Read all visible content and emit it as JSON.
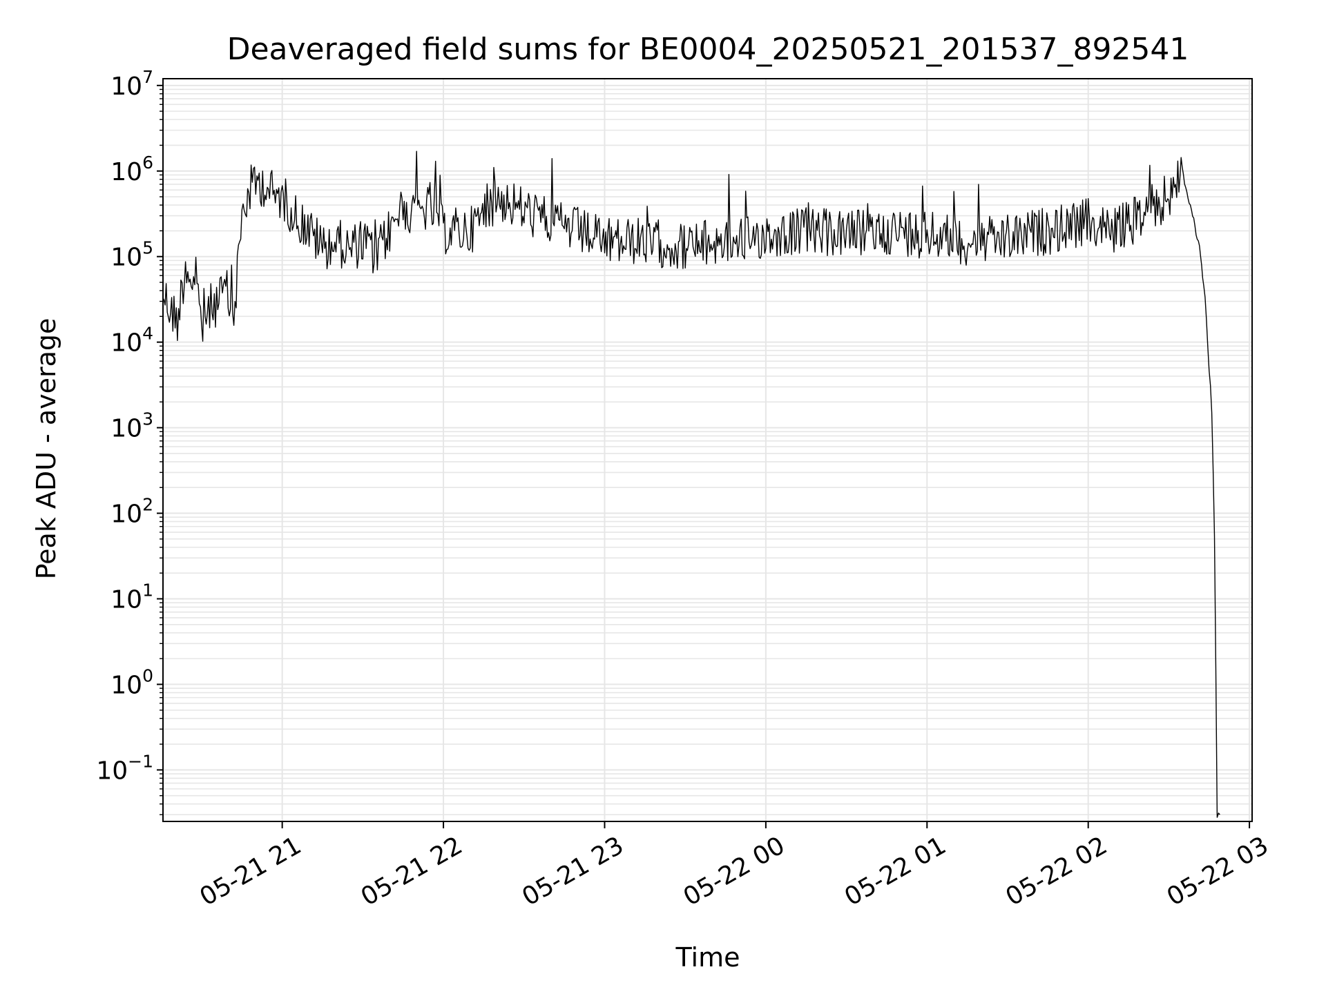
{
  "chart_data": {
    "type": "line",
    "title": "Deaveraged field sums for BE0004_20250521_201537_892541",
    "xlabel": "Time",
    "ylabel": "Peak ADU - average",
    "y_scale": "log",
    "ylim": [
      0.025,
      12000000
    ],
    "xlim": [
      "2025-05-21 20:15:37",
      "2025-05-22 03:01:00"
    ],
    "grid": true,
    "legend": "none",
    "line_color": "#000000",
    "grid_color": "#e6e6e6",
    "x_ticks": [
      {
        "value": "2025-05-21 21:00",
        "label": "05-21 21"
      },
      {
        "value": "2025-05-21 22:00",
        "label": "05-21 22"
      },
      {
        "value": "2025-05-21 23:00",
        "label": "05-21 23"
      },
      {
        "value": "2025-05-22 00:00",
        "label": "05-22 00"
      },
      {
        "value": "2025-05-22 01:00",
        "label": "05-22 01"
      },
      {
        "value": "2025-05-22 02:00",
        "label": "05-22 02"
      },
      {
        "value": "2025-05-22 03:00",
        "label": "05-22 03"
      }
    ],
    "y_ticks": [
      {
        "value": 0.1,
        "base": "10",
        "exp": "−1"
      },
      {
        "value": 1,
        "base": "10",
        "exp": "0"
      },
      {
        "value": 10,
        "base": "10",
        "exp": "1"
      },
      {
        "value": 100,
        "base": "10",
        "exp": "2"
      },
      {
        "value": 1000,
        "base": "10",
        "exp": "3"
      },
      {
        "value": 10000,
        "base": "10",
        "exp": "4"
      },
      {
        "value": 100000,
        "base": "10",
        "exp": "5"
      },
      {
        "value": 1000000,
        "base": "10",
        "exp": "6"
      },
      {
        "value": 10000000,
        "base": "10",
        "exp": "7"
      }
    ],
    "series": [
      {
        "x": [
          "2025-05-21 20:15:37",
          "2025-05-21 20:18",
          "2025-05-21 20:21",
          "2025-05-21 20:24",
          "2025-05-21 20:27",
          "2025-05-21 20:30",
          "2025-05-21 20:33",
          "2025-05-21 20:36",
          "2025-05-21 20:39",
          "2025-05-21 20:42",
          "2025-05-21 20:45",
          "2025-05-21 20:48",
          "2025-05-21 20:51",
          "2025-05-21 20:54",
          "2025-05-21 20:57",
          "2025-05-21 21:00",
          "2025-05-21 21:05",
          "2025-05-21 21:10",
          "2025-05-21 21:15",
          "2025-05-21 21:20",
          "2025-05-21 21:25",
          "2025-05-21 21:30",
          "2025-05-21 21:35",
          "2025-05-21 21:40",
          "2025-05-21 21:45",
          "2025-05-21 21:50",
          "2025-05-21 21:55",
          "2025-05-21 22:00",
          "2025-05-21 22:10",
          "2025-05-21 22:20",
          "2025-05-21 22:30",
          "2025-05-21 22:40",
          "2025-05-21 22:50",
          "2025-05-21 23:00",
          "2025-05-21 23:15",
          "2025-05-21 23:30",
          "2025-05-21 23:45",
          "2025-05-22 00:00",
          "2025-05-22 00:15",
          "2025-05-22 00:30",
          "2025-05-22 00:45",
          "2025-05-22 01:00",
          "2025-05-22 01:15",
          "2025-05-22 01:30",
          "2025-05-22 01:45",
          "2025-05-22 02:00",
          "2025-05-22 02:10",
          "2025-05-22 02:20",
          "2025-05-22 02:25",
          "2025-05-22 02:30",
          "2025-05-22 02:35",
          "2025-05-22 02:38",
          "2025-05-22 02:41",
          "2025-05-22 02:43",
          "2025-05-22 02:44",
          "2025-05-22 02:45",
          "2025-05-22 02:46",
          "2025-05-22 02:47",
          "2025-05-22 02:48",
          "2025-05-22 02:49"
        ],
        "values": [
          40000,
          25000,
          18000,
          80000,
          50000,
          15000,
          25000,
          30000,
          40000,
          20000,
          300000,
          600000,
          750000,
          700000,
          500000,
          500000,
          300000,
          200000,
          130000,
          150000,
          120000,
          150000,
          100000,
          200000,
          400000,
          300000,
          400000,
          200000,
          200000,
          500000,
          350000,
          250000,
          200000,
          150000,
          150000,
          130000,
          150000,
          180000,
          200000,
          180000,
          200000,
          180000,
          150000,
          160000,
          200000,
          250000,
          200000,
          300000,
          400000,
          500000,
          1000000,
          400000,
          150000,
          50000,
          20000,
          5000,
          1500,
          60,
          0.03,
          0.03
        ]
      }
    ]
  }
}
